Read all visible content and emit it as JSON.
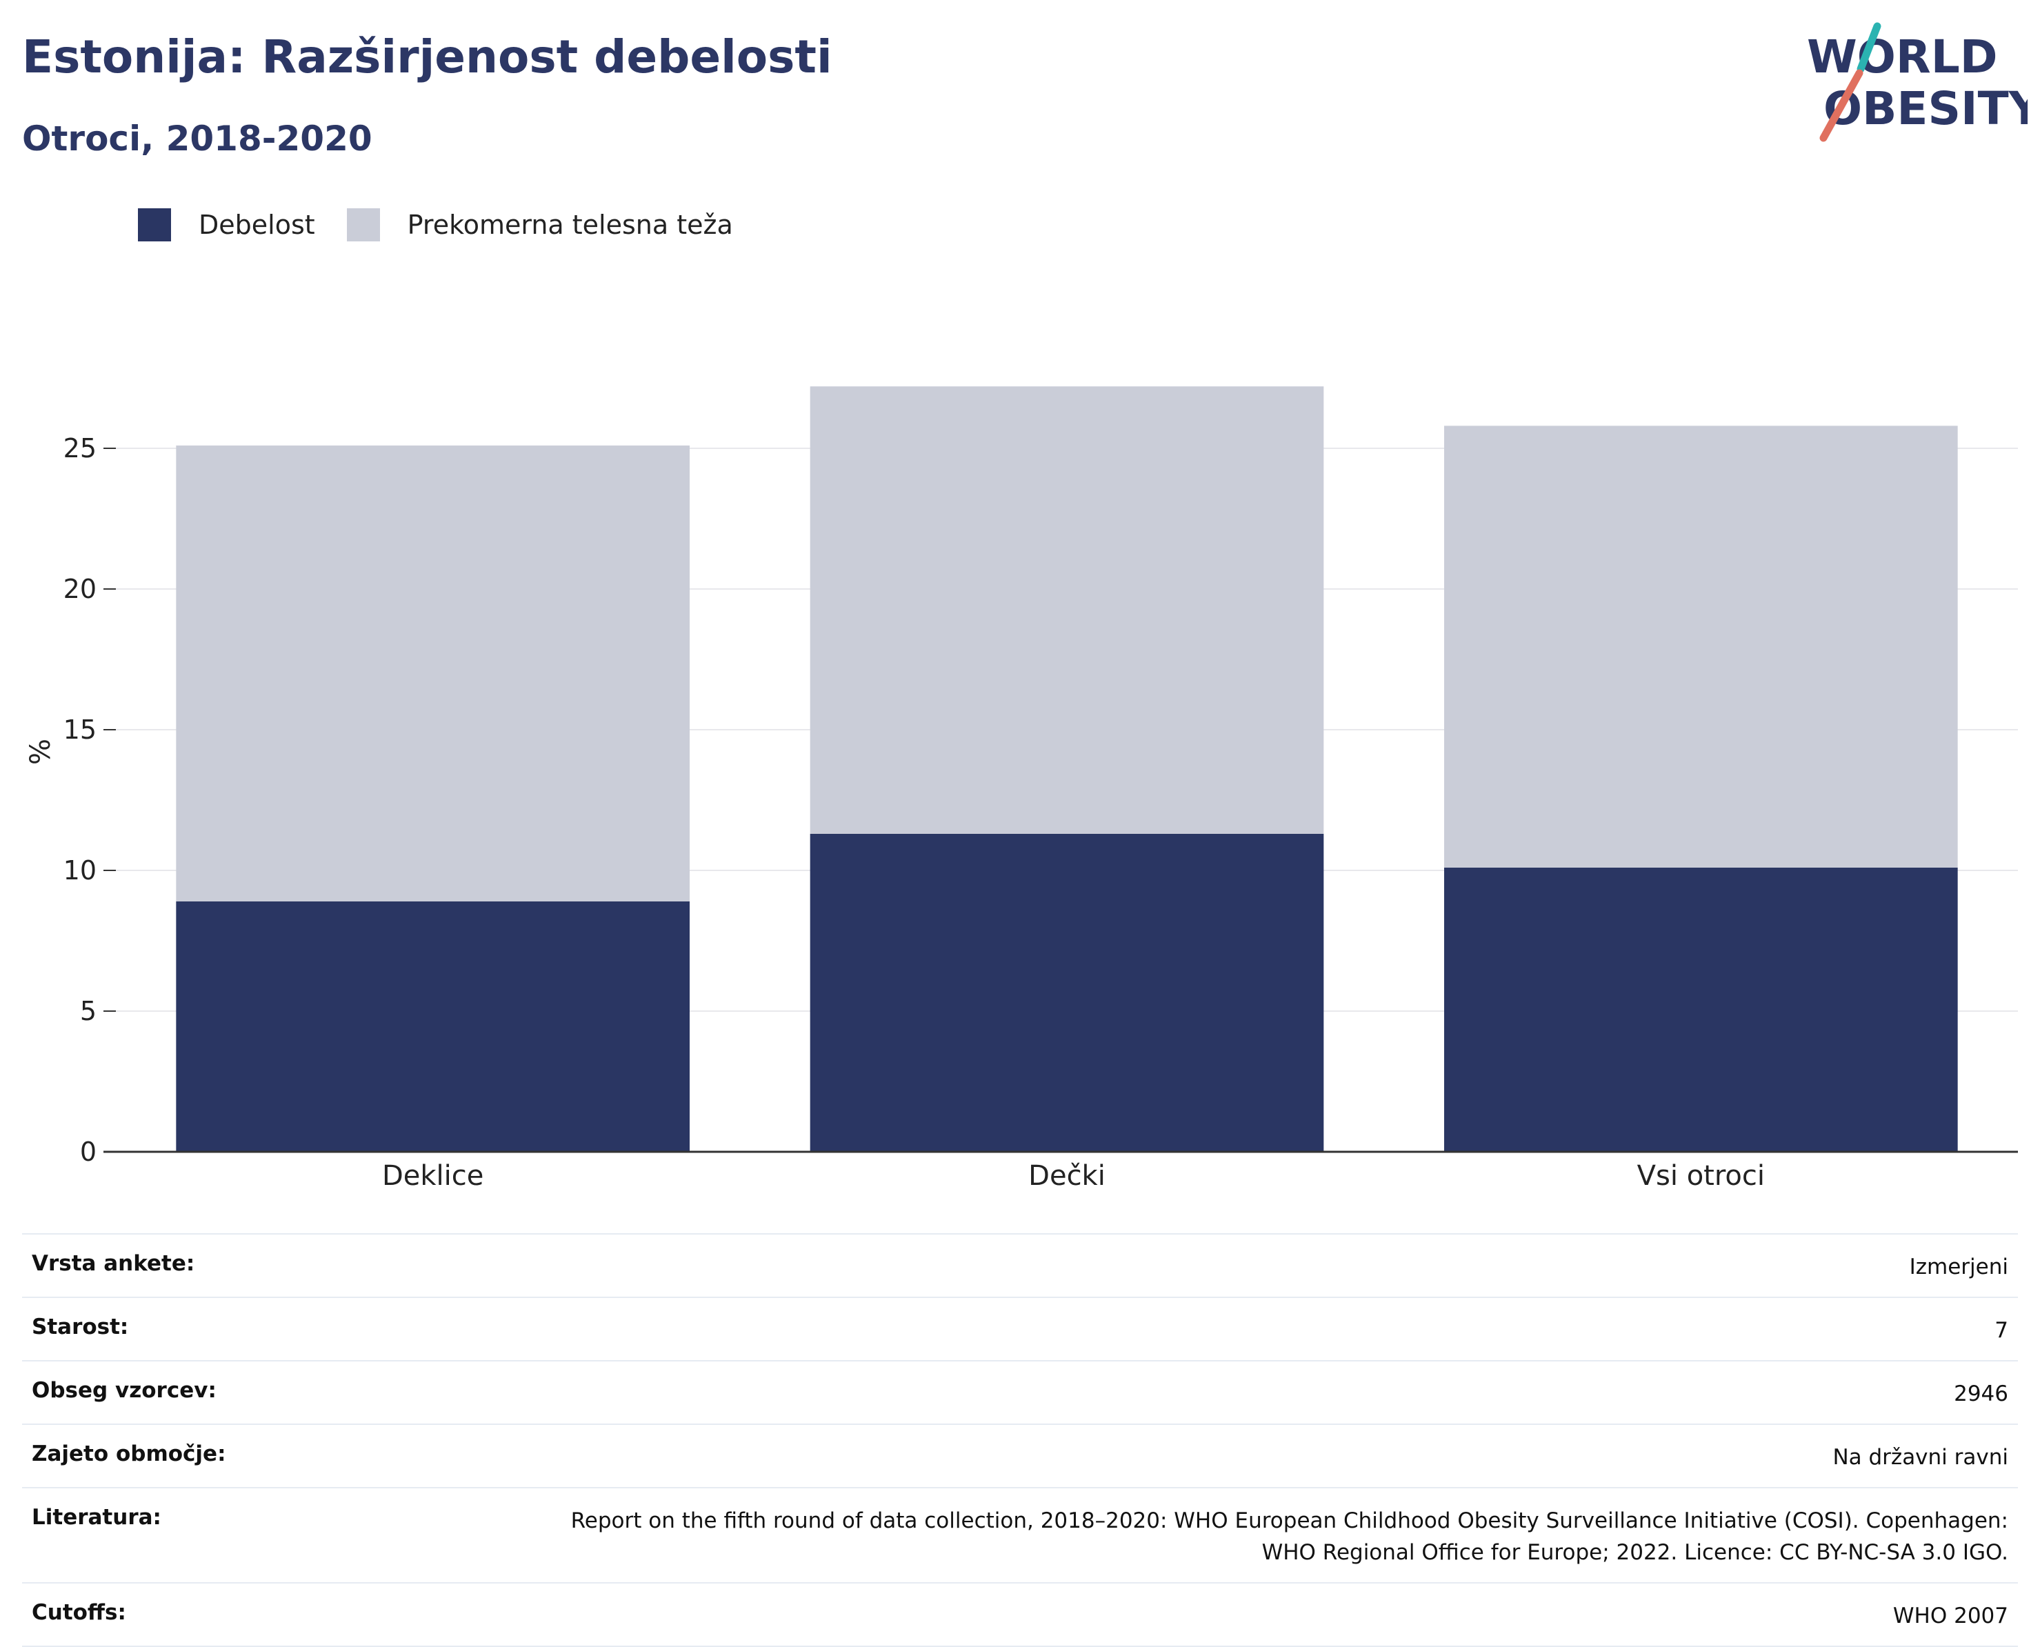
{
  "header": {
    "title": "Estonija: Razširjenost debelosti",
    "subtitle": "Otroci, 2018-2020"
  },
  "logo": {
    "line1": "WORLD",
    "line2": "OBESITY"
  },
  "colors": {
    "obesity": "#2a3663",
    "overweight": "#cacdd8",
    "title": "#2c3765",
    "logo_teal": "#2bb3b1",
    "logo_coral": "#e0705f"
  },
  "chart_data": {
    "type": "bar",
    "stacked": true,
    "categories": [
      "Deklice",
      "Dečki",
      "Vsi otroci"
    ],
    "series": [
      {
        "name": "Debelost",
        "values": [
          8.9,
          11.3,
          10.1
        ]
      },
      {
        "name": "Prekomerna telesna teža",
        "values": [
          16.2,
          15.9,
          15.7
        ]
      }
    ],
    "ylabel": "%",
    "xlabel": "",
    "ylim": [
      0,
      27.5
    ],
    "yticks": [
      0,
      5,
      10,
      15,
      20,
      25
    ],
    "grid": true,
    "legend": "top-left"
  },
  "meta": [
    {
      "key": "Vrsta ankete:",
      "lines": [
        "Izmerjeni"
      ]
    },
    {
      "key": "Starost:",
      "lines": [
        "7"
      ]
    },
    {
      "key": "Obseg vzorcev:",
      "lines": [
        "2946"
      ]
    },
    {
      "key": "Zajeto območje:",
      "lines": [
        "Na državni ravni"
      ]
    },
    {
      "key": "Literatura:",
      "lines": [
        "Report on the fifth round of data collection, 2018–2020: WHO European Childhood Obesity Surveillance Initiative (COSI). Copenhagen:",
        "WHO Regional Office for Europe; 2022. Licence: CC BY-NC-SA 3.0 IGO."
      ]
    },
    {
      "key": "Cutoffs:",
      "lines": [
        "WHO 2007"
      ]
    }
  ]
}
